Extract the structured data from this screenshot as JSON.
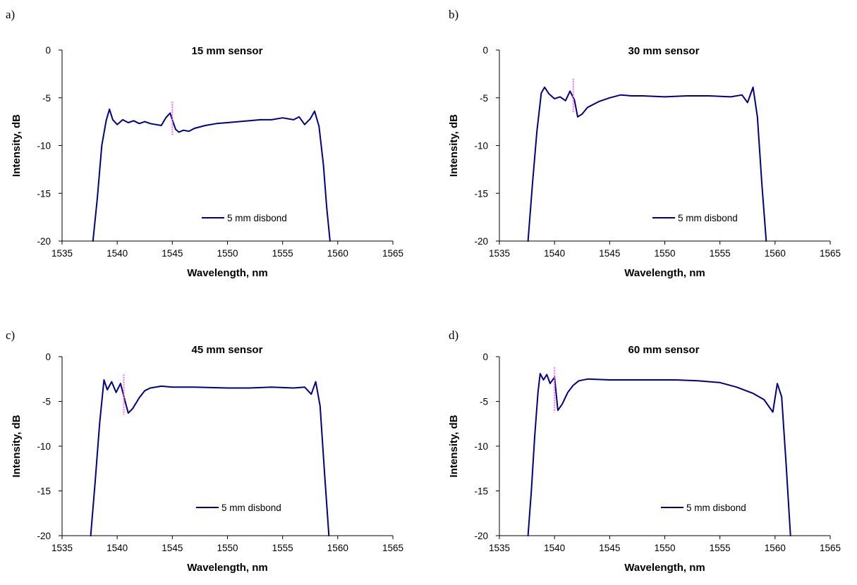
{
  "colors": {
    "series": "#000080",
    "marker": "#ff66ff",
    "axis": "#000000"
  },
  "chart_data": [
    {
      "panel": "a)",
      "type": "line",
      "title": "15 mm sensor",
      "xlabel": "Wavelength, nm",
      "ylabel": "Intensity, dB",
      "xlim": [
        1535,
        1565
      ],
      "ylim": [
        -20,
        0
      ],
      "xticks": [
        "1535",
        "1540",
        "1545",
        "1550",
        "1555",
        "1560",
        "1565"
      ],
      "yticks": [
        "0",
        "-5",
        "-10",
        "-15",
        "-20"
      ],
      "grid": false,
      "legend_position": "lower-right",
      "marker_line": {
        "x": 1545.0,
        "y": [
          -5.4,
          -9.0
        ]
      },
      "series": [
        {
          "name": "5 mm disbond",
          "x": [
            1537.8,
            1538.2,
            1538.6,
            1539.0,
            1539.3,
            1539.6,
            1540.0,
            1540.5,
            1541.0,
            1541.5,
            1542.0,
            1542.5,
            1543.0,
            1543.5,
            1544.0,
            1544.4,
            1544.8,
            1545.0,
            1545.3,
            1545.6,
            1546.0,
            1546.5,
            1547.0,
            1548.0,
            1549.0,
            1550.0,
            1551.0,
            1552.0,
            1553.0,
            1554.0,
            1555.0,
            1556.0,
            1556.5,
            1557.0,
            1557.5,
            1557.9,
            1558.3,
            1558.7,
            1559.0,
            1559.3
          ],
          "y": [
            -20,
            -15.5,
            -10,
            -7.4,
            -6.2,
            -7.3,
            -7.8,
            -7.3,
            -7.6,
            -7.4,
            -7.7,
            -7.5,
            -7.7,
            -7.8,
            -7.9,
            -7.1,
            -6.6,
            -7.3,
            -8.3,
            -8.6,
            -8.4,
            -8.5,
            -8.2,
            -7.9,
            -7.7,
            -7.6,
            -7.5,
            -7.4,
            -7.3,
            -7.3,
            -7.1,
            -7.3,
            -7.0,
            -7.8,
            -7.2,
            -6.4,
            -8.0,
            -12.0,
            -16.5,
            -20
          ]
        }
      ]
    },
    {
      "panel": "b)",
      "type": "line",
      "title": "30 mm sensor",
      "xlabel": "Wavelength, nm",
      "ylabel": "Intensity, dB",
      "xlim": [
        1535,
        1565
      ],
      "ylim": [
        -20,
        0
      ],
      "xticks": [
        "1535",
        "1540",
        "1545",
        "1550",
        "1555",
        "1560",
        "1565"
      ],
      "yticks": [
        "0",
        "-5",
        "-10",
        "-15",
        "-20"
      ],
      "grid": false,
      "legend_position": "lower-right",
      "marker_line": {
        "x": 1541.7,
        "y": [
          -3.0,
          -6.5
        ]
      },
      "series": [
        {
          "name": "5 mm disbond",
          "x": [
            1537.6,
            1538.0,
            1538.4,
            1538.8,
            1539.1,
            1539.5,
            1540.0,
            1540.5,
            1541.0,
            1541.4,
            1541.8,
            1542.1,
            1542.5,
            1543.0,
            1544.0,
            1545.0,
            1546.0,
            1547.0,
            1548.0,
            1550.0,
            1552.0,
            1554.0,
            1556.0,
            1557.0,
            1557.5,
            1558.0,
            1558.4,
            1558.8,
            1559.2
          ],
          "y": [
            -20,
            -14.0,
            -8.5,
            -4.5,
            -3.9,
            -4.6,
            -5.1,
            -4.9,
            -5.3,
            -4.3,
            -5.2,
            -7.0,
            -6.7,
            -6.0,
            -5.4,
            -5.0,
            -4.7,
            -4.8,
            -4.8,
            -4.9,
            -4.8,
            -4.8,
            -4.9,
            -4.7,
            -5.5,
            -3.9,
            -7.0,
            -14.0,
            -20
          ]
        }
      ]
    },
    {
      "panel": "c)",
      "type": "line",
      "title": "45 mm sensor",
      "xlabel": "Wavelength, nm",
      "ylabel": "Intensity, dB",
      "xlim": [
        1535,
        1565
      ],
      "ylim": [
        -20,
        0
      ],
      "xticks": [
        "1535",
        "1540",
        "1545",
        "1550",
        "1555",
        "1560",
        "1565"
      ],
      "yticks": [
        "0",
        "-5",
        "-10",
        "-15",
        "-20"
      ],
      "grid": false,
      "legend_position": "lower-right",
      "marker_line": {
        "x": 1540.6,
        "y": [
          -2.0,
          -6.5
        ]
      },
      "series": [
        {
          "name": "5 mm disbond",
          "x": [
            1537.6,
            1538.0,
            1538.4,
            1538.8,
            1539.1,
            1539.5,
            1539.9,
            1540.3,
            1540.7,
            1541.0,
            1541.4,
            1542.0,
            1542.5,
            1543.0,
            1544.0,
            1545.0,
            1547.0,
            1550.0,
            1552.0,
            1554.0,
            1556.0,
            1557.0,
            1557.6,
            1558.0,
            1558.4,
            1558.8,
            1559.2
          ],
          "y": [
            -20,
            -14.0,
            -7.5,
            -2.6,
            -3.7,
            -2.8,
            -4.0,
            -3.0,
            -4.9,
            -6.3,
            -5.8,
            -4.6,
            -3.8,
            -3.5,
            -3.3,
            -3.4,
            -3.4,
            -3.5,
            -3.5,
            -3.4,
            -3.5,
            -3.4,
            -4.2,
            -2.8,
            -5.5,
            -13.0,
            -20
          ]
        }
      ]
    },
    {
      "panel": "d)",
      "type": "line",
      "title": "60 mm sensor",
      "xlabel": "Wavelength, nm",
      "ylabel": "Intensity, dB",
      "xlim": [
        1535,
        1565
      ],
      "ylim": [
        -20,
        0
      ],
      "xticks": [
        "1535",
        "1540",
        "1545",
        "1550",
        "1555",
        "1560",
        "1565"
      ],
      "yticks": [
        "0",
        "-5",
        "-10",
        "-15",
        "-20"
      ],
      "grid": false,
      "legend_position": "lower-right",
      "marker_line": {
        "x": 1540.0,
        "y": [
          -1.2,
          -6.2
        ]
      },
      "series": [
        {
          "name": "5 mm disbond",
          "x": [
            1537.6,
            1537.9,
            1538.2,
            1538.5,
            1538.7,
            1539.0,
            1539.3,
            1539.6,
            1540.0,
            1540.3,
            1540.7,
            1541.2,
            1541.7,
            1542.2,
            1543.0,
            1545.0,
            1548.0,
            1551.0,
            1553.0,
            1555.0,
            1556.5,
            1558.0,
            1559.0,
            1559.8,
            1560.2,
            1560.6,
            1561.0,
            1561.4
          ],
          "y": [
            -20,
            -15.0,
            -9.0,
            -4.0,
            -1.9,
            -2.6,
            -2.0,
            -3.0,
            -2.3,
            -6.0,
            -5.3,
            -4.0,
            -3.2,
            -2.7,
            -2.5,
            -2.6,
            -2.6,
            -2.6,
            -2.7,
            -2.9,
            -3.4,
            -4.1,
            -4.8,
            -6.2,
            -3.0,
            -4.5,
            -12.0,
            -20
          ]
        }
      ]
    }
  ]
}
